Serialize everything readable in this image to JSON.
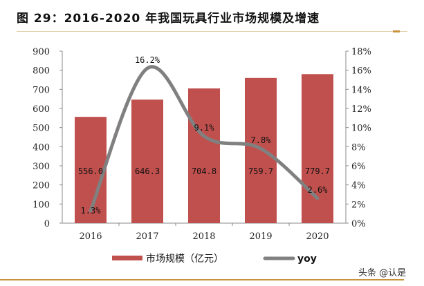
{
  "title": "图 29：2016-2020 年我国玩具行业市场规模及增速",
  "watermark": "头条 @认是",
  "chart_data": {
    "type": "bar+line",
    "categories": [
      "2016",
      "2017",
      "2018",
      "2019",
      "2020"
    ],
    "series": [
      {
        "name": "市场规模（亿元）",
        "type": "bar",
        "axis": "left",
        "color": "#c0504d",
        "values": [
          556.0,
          646.3,
          704.8,
          759.7,
          779.7
        ],
        "labels": [
          "556.0",
          "646.3",
          "704.8",
          "759.7",
          "779.7"
        ]
      },
      {
        "name": "yoy",
        "type": "line",
        "axis": "right",
        "color": "#808080",
        "values": [
          1.3,
          16.2,
          9.1,
          7.8,
          2.6
        ],
        "labels": [
          "1.3%",
          "16.2%",
          "9.1%",
          "7.8%",
          "2.6%"
        ]
      }
    ],
    "left_axis": {
      "ylim": [
        0,
        900
      ],
      "ticks": [
        "0",
        "100",
        "200",
        "300",
        "400",
        "500",
        "600",
        "700",
        "800",
        "900"
      ]
    },
    "right_axis": {
      "ylim": [
        0,
        18
      ],
      "ticks": [
        "0%",
        "2%",
        "4%",
        "6%",
        "8%",
        "10%",
        "12%",
        "14%",
        "16%",
        "18%"
      ]
    },
    "grid": false,
    "legend": "bottom"
  }
}
